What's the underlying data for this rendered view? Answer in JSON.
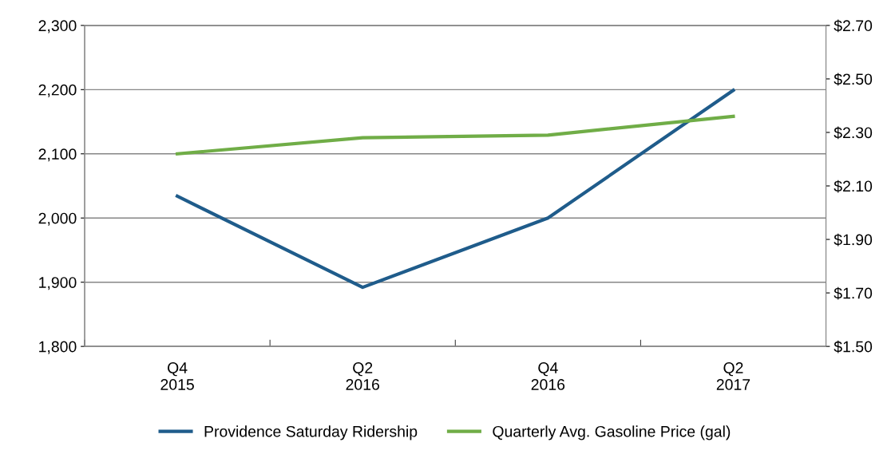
{
  "chart_data": {
    "type": "line",
    "categories": [
      "Q4\n2015",
      "Q2\n2016",
      "Q4\n2016",
      "Q2\n2017"
    ],
    "series": [
      {
        "name": "Providence Saturday Ridership",
        "color": "#1f5c8b",
        "values": [
          2034,
          1892,
          2000,
          2199
        ]
      },
      {
        "name": "Quarterly Avg. Gasoline Price (gal)",
        "color": "#70ad47",
        "values": [
          2.22,
          2.28,
          2.29,
          2.36
        ],
        "axis": "y2"
      }
    ],
    "ylim": [
      1800,
      2300
    ],
    "yticks": [
      {
        "value": 1800,
        "label": "1,800"
      },
      {
        "value": 1900,
        "label": "1,900"
      },
      {
        "value": 2000,
        "label": "2,000"
      },
      {
        "value": 2100,
        "label": "2,100"
      },
      {
        "value": 2200,
        "label": "2,200"
      },
      {
        "value": 2300,
        "label": "2,300"
      }
    ],
    "y2lim": [
      1.5,
      2.7
    ],
    "y2ticks": [
      {
        "value": 1.5,
        "label": "$1.50"
      },
      {
        "value": 1.7,
        "label": "$1.70"
      },
      {
        "value": 1.9,
        "label": "$1.90"
      },
      {
        "value": 2.1,
        "label": "$2.10"
      },
      {
        "value": 2.3,
        "label": "$2.30"
      },
      {
        "value": 2.5,
        "label": "$2.50"
      },
      {
        "value": 2.7,
        "label": "$2.70"
      }
    ],
    "grid": "y",
    "legend": "bottom",
    "marker": "none",
    "line_style": "solid"
  }
}
